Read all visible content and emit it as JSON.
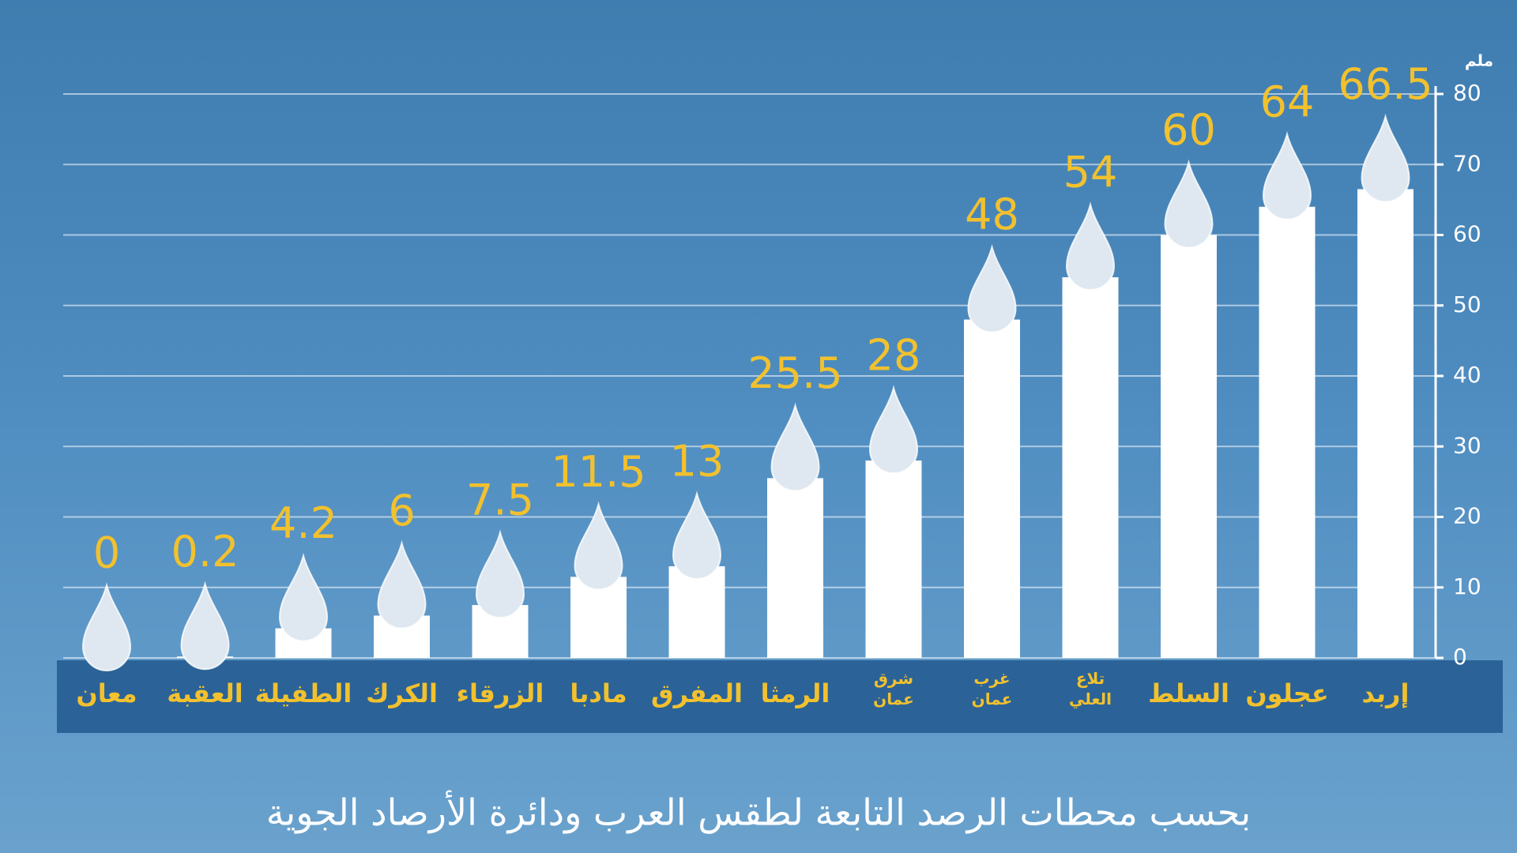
{
  "chart_data": {
    "type": "bar",
    "categories": [
      "معان",
      "العقبة",
      "الطفيلة",
      "الكرك",
      "الزرقاء",
      "مادبا",
      "المفرق",
      "الرمثا",
      "شرق عمان",
      "غرب عمان",
      "تلاع العلي",
      "السلط",
      "عجلون",
      "إربد"
    ],
    "values": [
      0,
      0.2,
      4.2,
      6,
      7.5,
      11.5,
      13,
      25.5,
      28,
      48,
      54,
      60,
      64,
      66.5
    ],
    "color": "#ffffff",
    "value_label_color": "#f2c12e",
    "y_unit": "ملم",
    "ylim": [
      0,
      80
    ],
    "yticks": [
      0,
      10,
      20,
      30,
      40,
      50,
      60,
      70,
      80
    ],
    "grid": true,
    "source": "بحسب محطات الرصد التابعة لطقس العرب ودائرة الأرصاد الجوية"
  }
}
